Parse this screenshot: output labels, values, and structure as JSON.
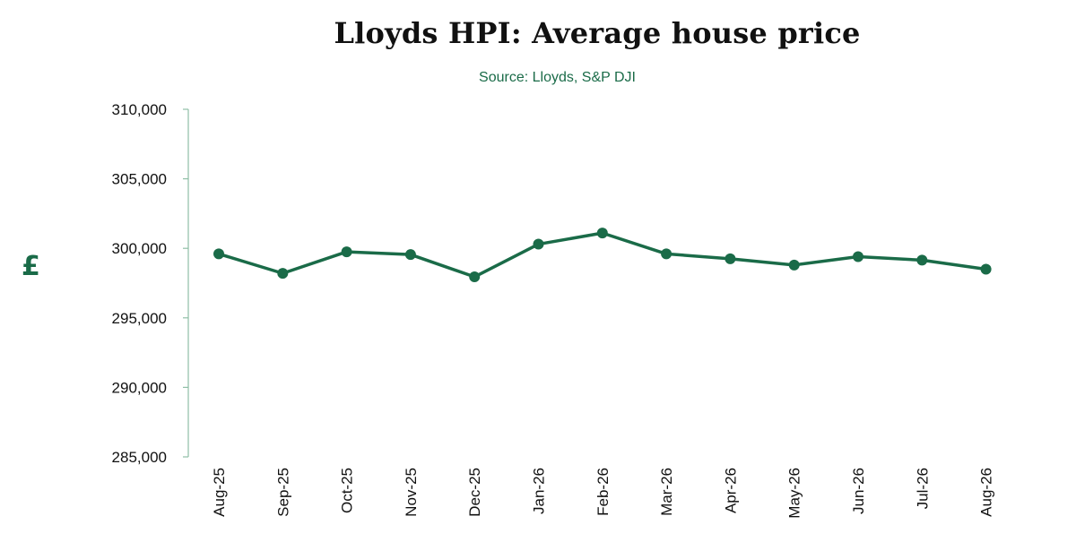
{
  "chart_data": {
    "type": "line",
    "title": "Lloyds HPI: Average house price",
    "subtitle": "Source: Lloyds, S&P DJI",
    "xlabel": "",
    "ylabel": "£",
    "ylim": [
      285000,
      310000
    ],
    "yticks": [
      285000,
      290000,
      295000,
      300000,
      305000,
      310000
    ],
    "ytick_labels": [
      "285,000",
      "290,000",
      "295,000",
      "300,000",
      "305,000",
      "310,000"
    ],
    "categories": [
      "Aug-25",
      "Sep-25",
      "Oct-25",
      "Nov-25",
      "Dec-25",
      "Jan-26",
      "Feb-26",
      "Mar-26",
      "Apr-26",
      "May-26",
      "Jun-26",
      "Jul-26",
      "Aug-26"
    ],
    "series": [
      {
        "values": [
          299600,
          298200,
          299750,
          299550,
          297950,
          300300,
          301100,
          299600,
          299250,
          298800,
          299400,
          299150,
          298500
        ],
        "color": "#1a6b48"
      }
    ],
    "grid": false,
    "legend": "none"
  }
}
